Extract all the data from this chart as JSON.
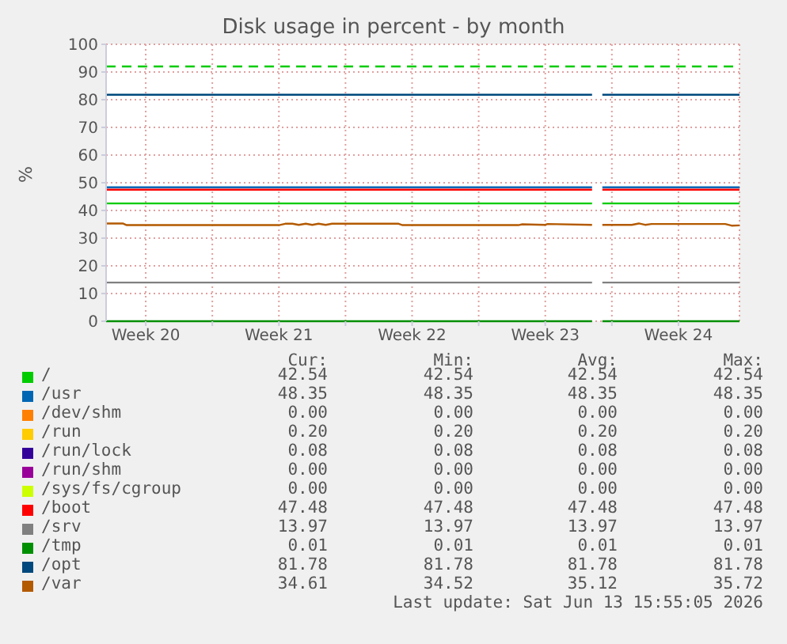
{
  "chart_data": {
    "type": "line",
    "title": "Disk usage in percent - by month",
    "ylabel": "%",
    "xlim": [
      "2026-05-12T10:00",
      "2026-06-14T17:00"
    ],
    "xticks": [
      {
        "value": "2026-05-14T12:00",
        "label": "Week 20"
      },
      {
        "value": "2026-05-18T00:00",
        "label": null
      },
      {
        "value": "2026-05-21T12:00",
        "label": "Week 21"
      },
      {
        "value": "2026-05-25T00:00",
        "label": null
      },
      {
        "value": "2026-05-28T12:00",
        "label": "Week 22"
      },
      {
        "value": "2026-06-01T00:00",
        "label": null
      },
      {
        "value": "2026-06-04T12:00",
        "label": "Week 23"
      },
      {
        "value": "2026-06-08T00:00",
        "label": null
      },
      {
        "value": "2026-06-11T12:00",
        "label": "Week 24"
      }
    ],
    "ylim": [
      0,
      100
    ],
    "yticks": [
      0,
      10,
      20,
      30,
      40,
      50,
      60,
      70,
      80,
      90,
      100
    ],
    "grid": true,
    "legend": "bottom",
    "marker": "none",
    "line_style": "solid",
    "x": [
      "2026-05-12T10:00",
      "2026-06-06T23:00",
      "2026-06-07T04:00",
      "2026-06-07T12:00",
      "2026-06-14T17:00"
    ],
    "series": [
      {
        "name": "/",
        "color": "#00cc00",
        "values": [
          42.54,
          42.54,
          null,
          42.54,
          42.54
        ]
      },
      {
        "name": "/usr",
        "color": "#0066b3",
        "values": [
          48.35,
          48.35,
          null,
          48.35,
          48.35
        ]
      },
      {
        "name": "/dev/shm",
        "color": "#ff8000",
        "values": [
          null,
          null,
          null,
          null,
          null
        ]
      },
      {
        "name": "/run",
        "color": "#ffcc00",
        "values": [
          null,
          null,
          null,
          null,
          null
        ]
      },
      {
        "name": "/run/lock",
        "color": "#330099",
        "values": [
          null,
          null,
          null,
          null,
          null
        ]
      },
      {
        "name": "/run/shm",
        "color": "#990099",
        "values": [
          null,
          null,
          null,
          null,
          null
        ]
      },
      {
        "name": "/sys/fs/cgroup",
        "color": "#ccff00",
        "values": [
          null,
          null,
          null,
          null,
          null
        ]
      },
      {
        "name": "/boot",
        "color": "#ff0000",
        "values": [
          47.48,
          47.48,
          null,
          47.48,
          47.48
        ]
      },
      {
        "name": "/srv",
        "color": "#808080",
        "values": [
          13.97,
          13.97,
          null,
          13.97,
          13.97
        ]
      },
      {
        "name": "/tmp",
        "color": "#008f00",
        "values": [
          0.01,
          0.01,
          null,
          0.01,
          0.01
        ]
      },
      {
        "name": "/opt",
        "color": "#00487d",
        "values": [
          81.78,
          81.78,
          null,
          81.78,
          81.78
        ]
      },
      {
        "name": "/var",
        "color": "#b35a00",
        "x": [
          "2026-05-12T10:00",
          "2026-05-13T07:00",
          "2026-05-13T12:00",
          "2026-05-21T12:00",
          "2026-05-21T20:00",
          "2026-05-22T05:00",
          "2026-05-22T13:00",
          "2026-05-22T22:00",
          "2026-05-23T06:00",
          "2026-05-23T14:00",
          "2026-05-23T23:00",
          "2026-05-24T07:00",
          "2026-05-27T19:00",
          "2026-05-28T00:00",
          "2026-06-03T02:00",
          "2026-06-03T07:00",
          "2026-06-04T12:00",
          "2026-06-04T15:00",
          "2026-06-06T23:00",
          "2026-06-07T04:00",
          "2026-06-07T12:00",
          "2026-06-09T01:00",
          "2026-06-09T10:00",
          "2026-06-09T18:00",
          "2026-06-10T02:00",
          "2026-06-13T23:00",
          "2026-06-14T07:00",
          "2026-06-14T17:00"
        ],
        "values": [
          35.3,
          35.3,
          34.7,
          34.7,
          35.2,
          35.2,
          34.8,
          35.2,
          34.8,
          35.2,
          34.8,
          35.2,
          35.2,
          34.7,
          34.7,
          35.0,
          34.8,
          35.1,
          34.8,
          null,
          34.8,
          34.8,
          35.3,
          34.8,
          35.1,
          35.1,
          34.52,
          34.61
        ]
      }
    ],
    "ref_lines": [
      {
        "axis": "y",
        "value": 92,
        "color": "#00cc00",
        "line_style": "dashed"
      }
    ],
    "annotations": [
      "Cur:",
      "Min:",
      "Avg:",
      "Max:",
      "42.54",
      "42.54",
      "42.54",
      "42.54",
      "48.35",
      "48.35",
      "48.35",
      "48.35",
      "0.00",
      "0.00",
      "0.00",
      "0.00",
      "0.20",
      "0.20",
      "0.20",
      "0.20",
      "0.08",
      "0.08",
      "0.08",
      "0.08",
      "0.00",
      "0.00",
      "0.00",
      "0.00",
      "0.00",
      "0.00",
      "0.00",
      "0.00",
      "47.48",
      "47.48",
      "47.48",
      "47.48",
      "13.97",
      "13.97",
      "13.97",
      "13.97",
      "0.01",
      "0.01",
      "0.01",
      "0.01",
      "81.78",
      "81.78",
      "81.78",
      "81.78",
      "34.61",
      "34.52",
      "35.12",
      "35.72",
      "Last update: Sat Jun 13 15:55:05 2026"
    ]
  }
}
